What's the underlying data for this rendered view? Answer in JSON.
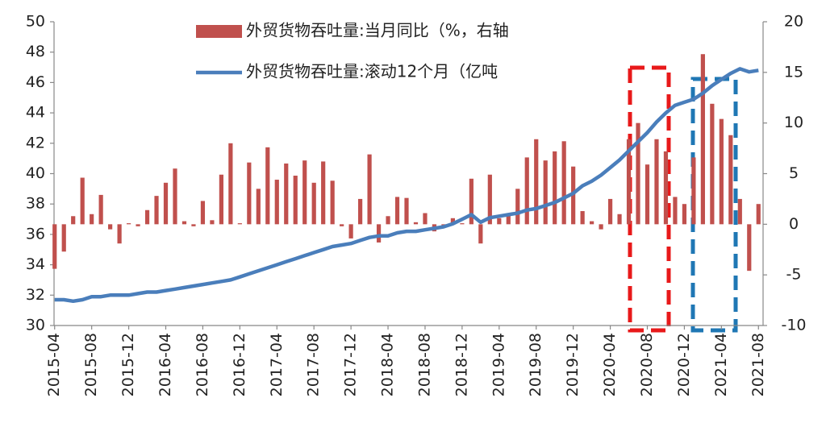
{
  "chart_data": {
    "type": "combo",
    "categories": [
      "2015-04",
      null,
      null,
      null,
      "2015-08",
      null,
      null,
      null,
      "2015-12",
      null,
      null,
      null,
      "2016-04",
      null,
      null,
      null,
      "2016-08",
      null,
      null,
      null,
      "2016-12",
      null,
      null,
      null,
      "2017-04",
      null,
      null,
      null,
      "2017-08",
      null,
      null,
      null,
      "2017-12",
      null,
      null,
      null,
      "2018-04",
      null,
      null,
      null,
      "2018-08",
      null,
      null,
      null,
      "2018-12",
      null,
      null,
      null,
      "2019-04",
      null,
      null,
      null,
      "2019-08",
      null,
      null,
      null,
      "2019-12",
      null,
      null,
      null,
      "2020-04",
      null,
      null,
      null,
      "2020-08",
      null,
      null,
      null,
      "2020-12",
      null,
      null,
      null,
      "2021-04",
      null,
      null,
      null,
      "2021-08"
    ],
    "series": [
      {
        "name": "外贸货物吞吐量:当月同比（%，右轴",
        "type": "bar",
        "axis": "y2",
        "color": "#c0504d",
        "values": [
          -4.4,
          -2.7,
          0.8,
          4.6,
          1.0,
          2.9,
          -0.5,
          -1.9,
          0.1,
          -0.2,
          1.4,
          2.8,
          4.1,
          5.5,
          0.3,
          -0.2,
          2.3,
          0.4,
          4.9,
          8.0,
          0.1,
          6.1,
          3.5,
          7.6,
          4.4,
          6.0,
          4.8,
          6.3,
          4.1,
          6.2,
          4.3,
          -0.2,
          -1.4,
          2.5,
          6.9,
          -1.8,
          0.8,
          2.7,
          2.6,
          0.2,
          1.1,
          -0.7,
          -0.2,
          0.6,
          0.1,
          4.5,
          -1.9,
          4.9,
          0.6,
          1.1,
          3.5,
          6.6,
          8.4,
          6.3,
          7.2,
          8.2,
          5.7,
          1.3,
          0.3,
          -0.5,
          2.5,
          1.0,
          8.4,
          10.0,
          5.9,
          8.4,
          7.2,
          2.7,
          2.0,
          6.6,
          16.8,
          11.9,
          10.4,
          8.8,
          2.5,
          -4.6,
          2.0
        ]
      },
      {
        "name": "外贸货物吞吐量:滚动12个月（亿吨",
        "type": "line",
        "color": "#4a7ebb",
        "values": [
          31.7,
          31.7,
          31.6,
          31.7,
          31.9,
          31.9,
          32.0,
          32.0,
          32.0,
          32.1,
          32.2,
          32.2,
          32.3,
          32.4,
          32.5,
          32.6,
          32.7,
          32.8,
          32.9,
          33.0,
          33.2,
          33.4,
          33.6,
          33.8,
          34.0,
          34.2,
          34.4,
          34.6,
          34.8,
          35.0,
          35.2,
          35.3,
          35.4,
          35.6,
          35.8,
          35.9,
          35.9,
          36.1,
          36.2,
          36.2,
          36.3,
          36.4,
          36.5,
          36.7,
          37.0,
          37.3,
          36.8,
          37.1,
          37.2,
          37.3,
          37.4,
          37.6,
          37.7,
          37.9,
          38.1,
          38.4,
          38.7,
          39.2,
          39.5,
          39.9,
          40.4,
          40.9,
          41.5,
          42.1,
          42.7,
          43.4,
          44.0,
          44.5,
          44.7,
          44.9,
          45.3,
          45.8,
          46.2,
          46.6,
          46.9,
          46.7,
          46.8
        ]
      }
    ],
    "ylim": [
      30,
      50
    ],
    "yticks": [
      30,
      32,
      34,
      36,
      38,
      40,
      42,
      44,
      46,
      48,
      50
    ],
    "y2lim": [
      -10,
      20
    ],
    "y2ticks": [
      -10,
      -5,
      0,
      5,
      10,
      15,
      20
    ]
  }
}
